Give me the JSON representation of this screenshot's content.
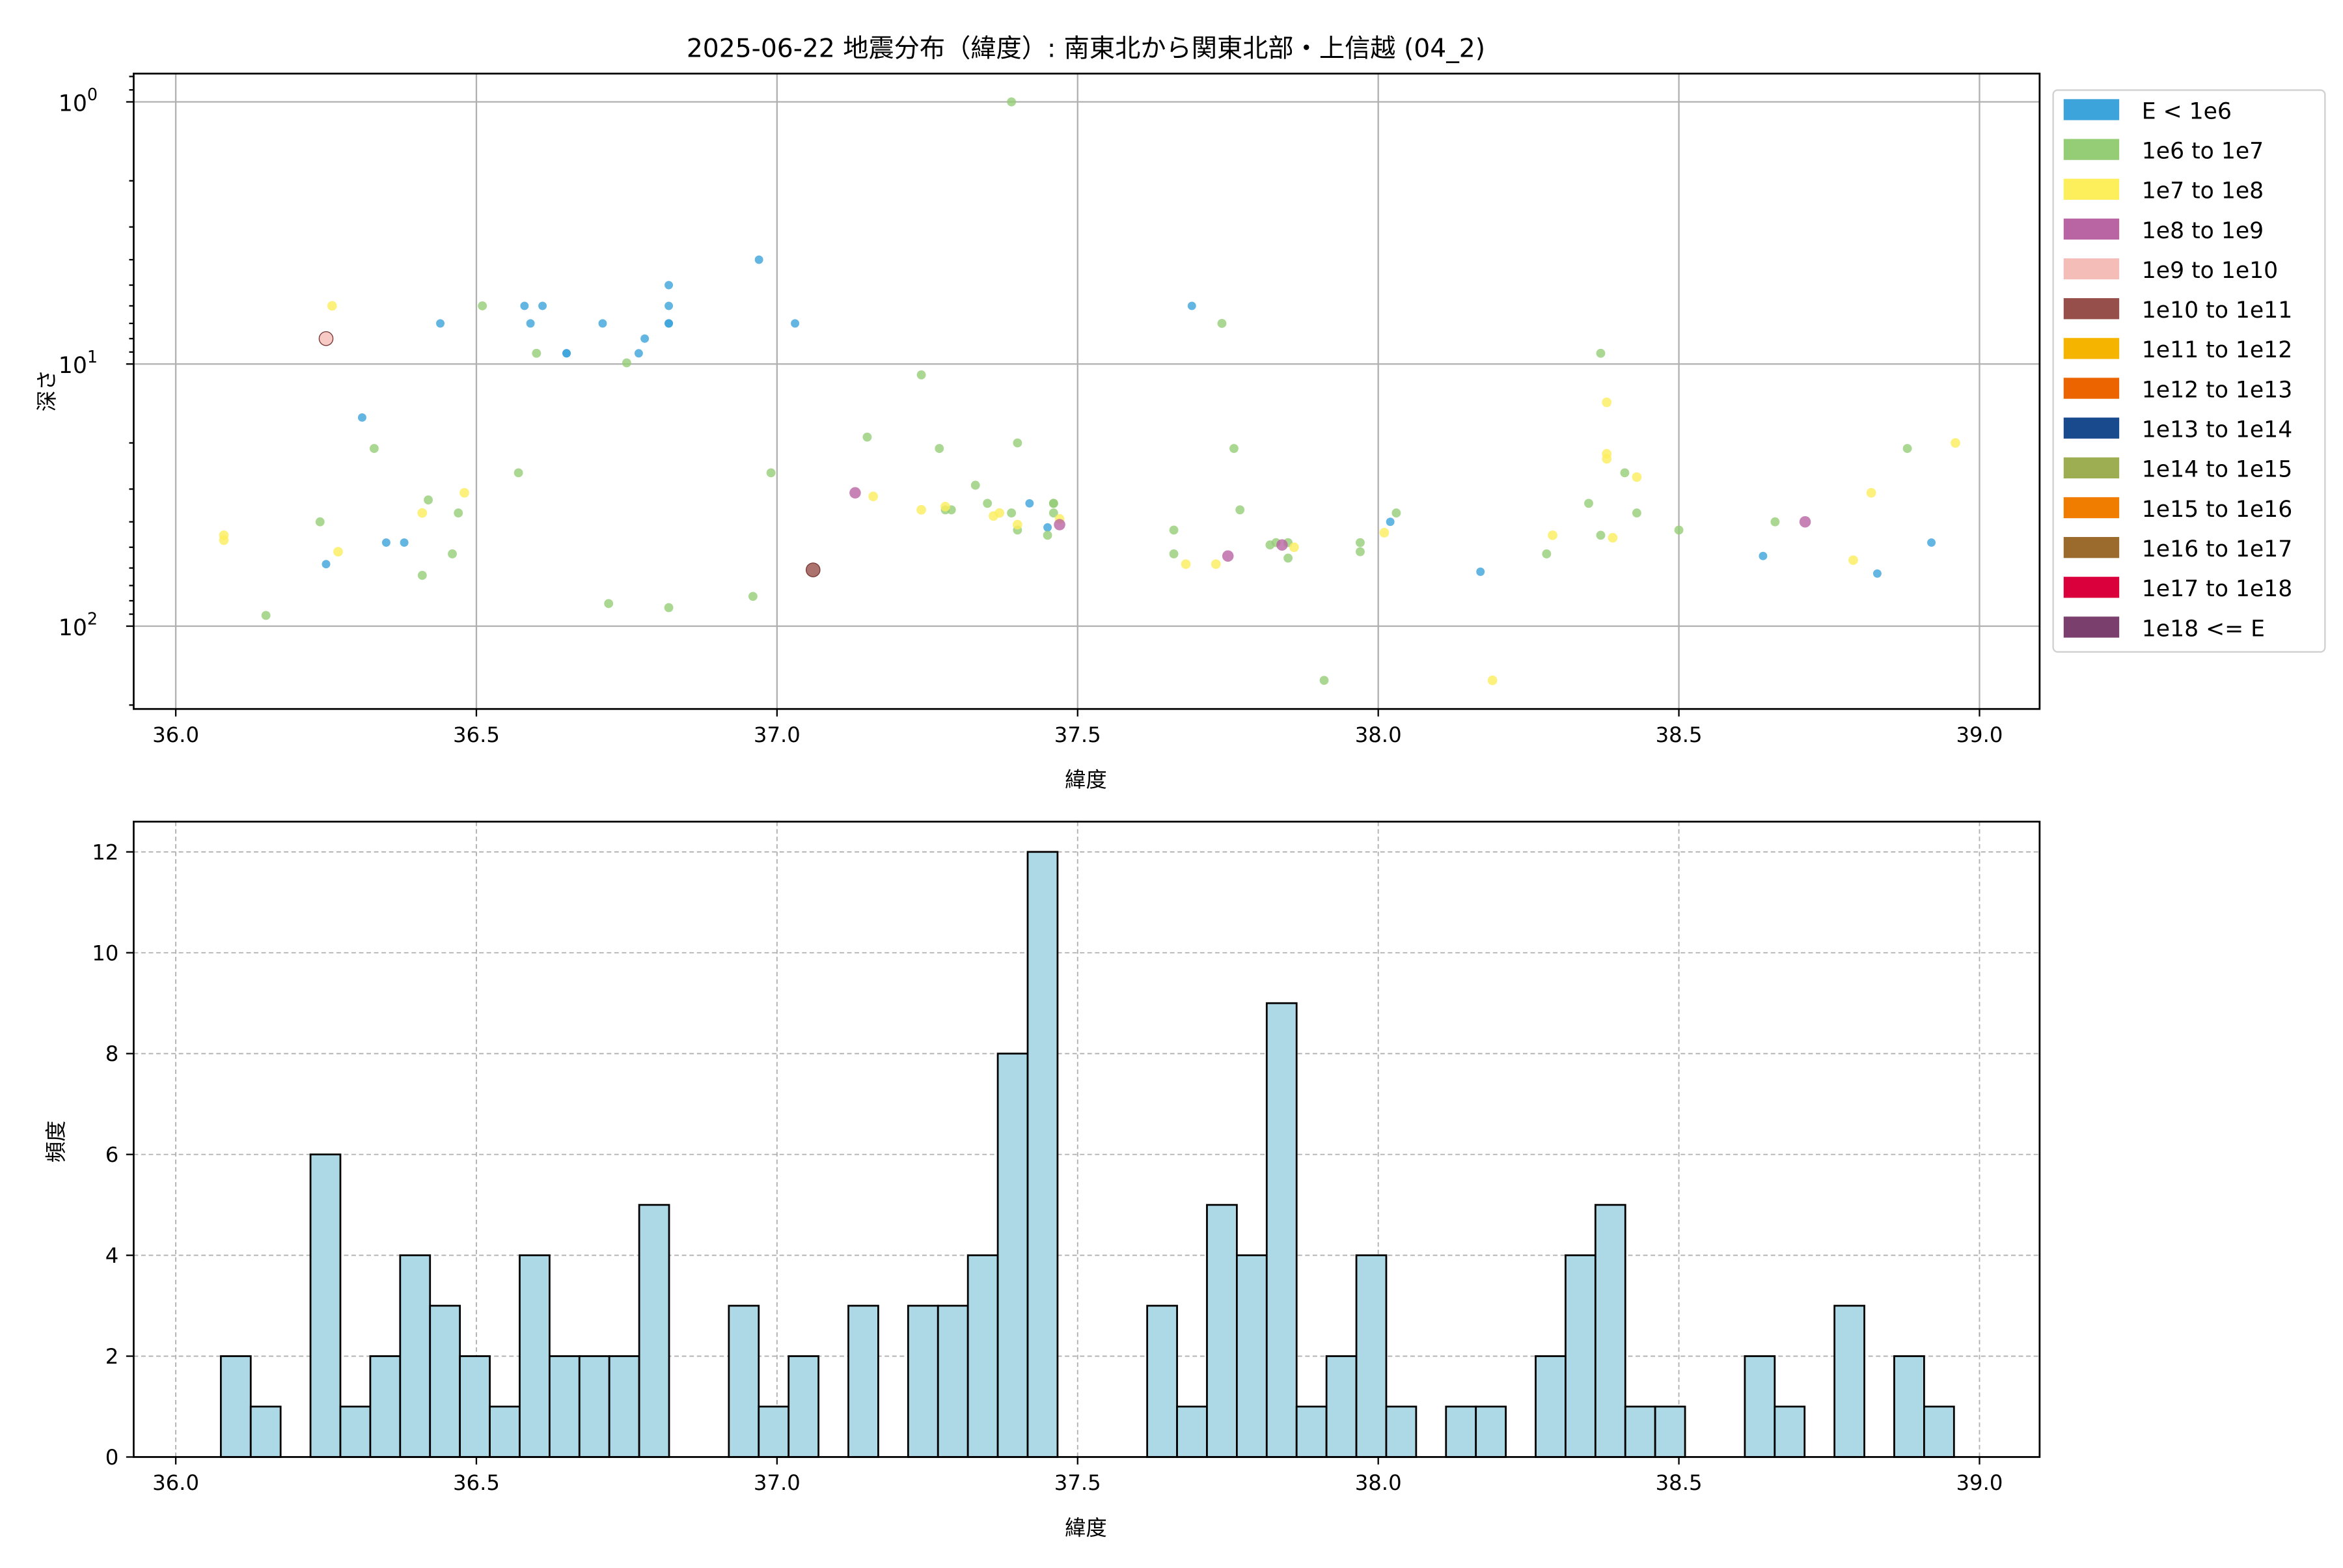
{
  "chart_data": [
    {
      "type": "scatter",
      "title": "2025-06-22 地震分布（緯度）: 南東北から関東北部・上信越 (04_2)",
      "xlabel": "緯度",
      "ylabel": "深さ",
      "xlim": [
        35.93,
        39.1
      ],
      "ylim": [
        207,
        0.78
      ],
      "yscale": "log",
      "y_inverted": true,
      "grid": true,
      "xticks": [
        "36.0",
        "36.5",
        "37.0",
        "37.5",
        "38.0",
        "38.5",
        "39.0"
      ],
      "yticks": [
        {
          "base": "10",
          "exp": "0",
          "value": 1
        },
        {
          "base": "10",
          "exp": "1",
          "value": 10
        },
        {
          "base": "10",
          "exp": "2",
          "value": 100
        }
      ],
      "legend_position": "outside-right",
      "legend": [
        {
          "label": "E < 1e6",
          "color": "#3ca3db"
        },
        {
          "label": "1e6 to 1e7",
          "color": "#95cd77"
        },
        {
          "label": "1e7 to 1e8",
          "color": "#fdee5c"
        },
        {
          "label": "1e8 to 1e9",
          "color": "#b964a3"
        },
        {
          "label": "1e9 to 1e10",
          "color": "#f5bdb8"
        },
        {
          "label": "1e10 to 1e11",
          "color": "#964f4a"
        },
        {
          "label": "1e11 to 1e12",
          "color": "#f5b400"
        },
        {
          "label": "1e12 to 1e13",
          "color": "#ec6400"
        },
        {
          "label": "1e13 to 1e14",
          "color": "#1a4a8e"
        },
        {
          "label": "1e14 to 1e15",
          "color": "#9cae51"
        },
        {
          "label": "1e15 to 1e16",
          "color": "#f07c00"
        },
        {
          "label": "1e16 to 1e17",
          "color": "#9a6b2d"
        },
        {
          "label": "1e17 to 1e18",
          "color": "#d9003b"
        },
        {
          "label": "1e18 <= E",
          "color": "#7b3f6e"
        }
      ],
      "series": [
        {
          "name": "E < 1e6",
          "points": [
            [
              36.82,
              7.0
            ],
            [
              36.58,
              6.0
            ],
            [
              36.61,
              6.0
            ],
            [
              36.59,
              7.0
            ],
            [
              36.71,
              7.0
            ],
            [
              36.82,
              7.0
            ],
            [
              36.82,
              6.0
            ],
            [
              36.82,
              5.0
            ],
            [
              36.97,
              4.0
            ],
            [
              37.03,
              7.0
            ],
            [
              36.65,
              9.1
            ],
            [
              36.65,
              9.1
            ],
            [
              36.77,
              9.1
            ],
            [
              36.78,
              8.0
            ],
            [
              36.44,
              7.0
            ],
            [
              36.31,
              16
            ],
            [
              36.35,
              48
            ],
            [
              36.38,
              48
            ],
            [
              36.25,
              58
            ],
            [
              37.42,
              34
            ],
            [
              37.45,
              42
            ],
            [
              37.69,
              6.0
            ],
            [
              38.02,
              40
            ],
            [
              38.17,
              62
            ],
            [
              38.64,
              54
            ],
            [
              38.83,
              63
            ],
            [
              38.92,
              48
            ]
          ]
        },
        {
          "name": "1e6 to 1e7",
          "points": [
            [
              37.39,
              1.0
            ],
            [
              36.51,
              6.0
            ],
            [
              36.6,
              9.1
            ],
            [
              36.75,
              9.9
            ],
            [
              37.24,
              11
            ],
            [
              37.74,
              7.0
            ],
            [
              38.37,
              9.1
            ],
            [
              37.15,
              19
            ],
            [
              37.27,
              21
            ],
            [
              37.4,
              20
            ],
            [
              36.33,
              21
            ],
            [
              36.57,
              26
            ],
            [
              36.99,
              26
            ],
            [
              37.76,
              21
            ],
            [
              37.33,
              29
            ],
            [
              37.35,
              34
            ],
            [
              37.29,
              36
            ],
            [
              37.28,
              36
            ],
            [
              37.39,
              37
            ],
            [
              37.46,
              37
            ],
            [
              37.46,
              34
            ],
            [
              37.46,
              34
            ],
            [
              37.4,
              43
            ],
            [
              37.45,
              45
            ],
            [
              37.66,
              43
            ],
            [
              37.66,
              53
            ],
            [
              37.77,
              36
            ],
            [
              38.41,
              26
            ],
            [
              38.35,
              34
            ],
            [
              38.43,
              37
            ],
            [
              38.03,
              37
            ],
            [
              38.66,
              40
            ],
            [
              38.5,
              43
            ],
            [
              38.88,
              21
            ],
            [
              38.37,
              45
            ],
            [
              38.28,
              53
            ],
            [
              37.97,
              48
            ],
            [
              37.97,
              52
            ],
            [
              37.85,
              55
            ],
            [
              37.85,
              48
            ],
            [
              37.83,
              48
            ],
            [
              37.82,
              49
            ],
            [
              36.42,
              33
            ],
            [
              36.47,
              37
            ],
            [
              36.24,
              40
            ],
            [
              36.46,
              53
            ],
            [
              36.41,
              64
            ],
            [
              36.15,
              91
            ],
            [
              36.72,
              82
            ],
            [
              36.82,
              85
            ],
            [
              36.96,
              77
            ],
            [
              37.91,
              161
            ]
          ]
        },
        {
          "name": "1e7 to 1e8",
          "points": [
            [
              36.26,
              6.0
            ],
            [
              38.38,
              14
            ],
            [
              38.38,
              22
            ],
            [
              38.38,
              23
            ],
            [
              38.43,
              27
            ],
            [
              38.96,
              20
            ],
            [
              36.48,
              31
            ],
            [
              36.41,
              37
            ],
            [
              37.16,
              32
            ],
            [
              37.24,
              36
            ],
            [
              37.28,
              35
            ],
            [
              37.36,
              38
            ],
            [
              37.37,
              37
            ],
            [
              37.4,
              41
            ],
            [
              37.47,
              39
            ],
            [
              38.82,
              31
            ],
            [
              38.01,
              44
            ],
            [
              38.29,
              45
            ],
            [
              38.39,
              46
            ],
            [
              37.86,
              50
            ],
            [
              37.68,
              58
            ],
            [
              37.73,
              58
            ],
            [
              38.79,
              56
            ],
            [
              36.08,
              45
            ],
            [
              36.08,
              47
            ],
            [
              36.27,
              52
            ],
            [
              38.19,
              161
            ]
          ]
        },
        {
          "name": "1e8 to 1e9",
          "points": [
            [
              37.13,
              31
            ],
            [
              37.47,
              41
            ],
            [
              38.71,
              40
            ],
            [
              37.75,
              54
            ],
            [
              37.84,
              49
            ]
          ]
        },
        {
          "name": "1e9 to 1e10",
          "points": [
            [
              36.25,
              8.0
            ]
          ]
        },
        {
          "name": "1e10 to 1e11",
          "points": [
            [
              37.06,
              61
            ]
          ]
        }
      ]
    },
    {
      "type": "bar",
      "title": "",
      "xlabel": "緯度",
      "ylabel": "頻度",
      "xlim": [
        35.93,
        39.1
      ],
      "ylim": [
        0,
        12.6
      ],
      "grid": true,
      "bar_color": "#add8e6",
      "bin_start": 36.075,
      "bin_width": 0.0497,
      "xticks": [
        "36.0",
        "36.5",
        "37.0",
        "37.5",
        "38.0",
        "38.5",
        "39.0"
      ],
      "yticks": [
        "0",
        "2",
        "4",
        "6",
        "8",
        "10",
        "12"
      ],
      "values": [
        2,
        1,
        0,
        6,
        1,
        2,
        4,
        3,
        2,
        1,
        4,
        2,
        2,
        2,
        5,
        0,
        0,
        3,
        1,
        2,
        0,
        3,
        0,
        3,
        3,
        4,
        8,
        12,
        0,
        0,
        0,
        3,
        1,
        5,
        4,
        9,
        1,
        2,
        4,
        1,
        0,
        1,
        1,
        0,
        2,
        4,
        5,
        1,
        1,
        0,
        0,
        2,
        1,
        0,
        3,
        0,
        2,
        1
      ]
    }
  ]
}
